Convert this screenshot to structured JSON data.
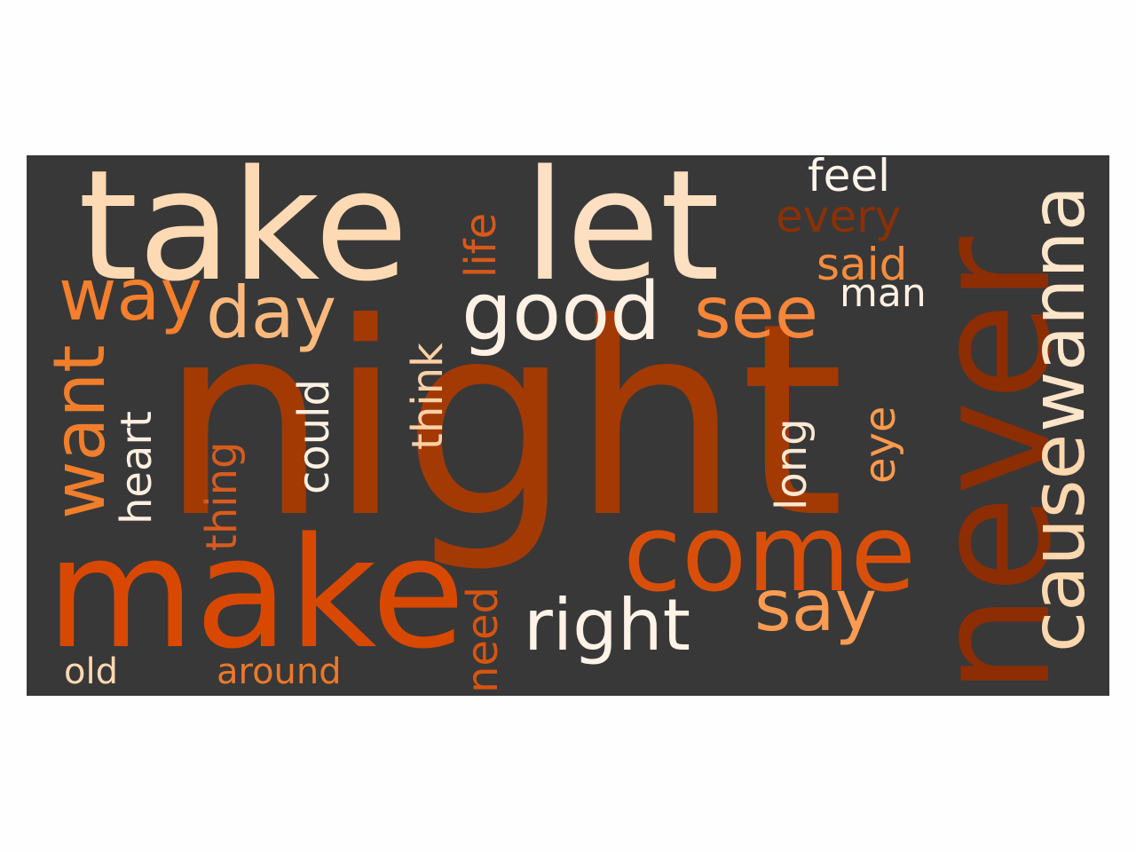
{
  "background_color": "#383838",
  "words": [
    {
      "text": "night",
      "color": "#a33a03"
    },
    {
      "text": "never",
      "color": "#8c2d04"
    },
    {
      "text": "take",
      "color": "#fddab4"
    },
    {
      "text": "let",
      "color": "#fde0c1"
    },
    {
      "text": "make",
      "color": "#d94801"
    },
    {
      "text": "come",
      "color": "#d94f0a"
    },
    {
      "text": "wanna",
      "color": "#fde5ca"
    },
    {
      "text": "cause",
      "color": "#fdd7ae"
    },
    {
      "text": "good",
      "color": "#fff1e4"
    },
    {
      "text": "right",
      "color": "#fff3e7"
    },
    {
      "text": "want",
      "color": "#f17e2b"
    },
    {
      "text": "day",
      "color": "#fdb97c"
    },
    {
      "text": "see",
      "color": "#f5863a"
    },
    {
      "text": "way",
      "color": "#f57f2c"
    },
    {
      "text": "say",
      "color": "#fd9b52"
    },
    {
      "text": "heart",
      "color": "#ffefe2"
    },
    {
      "text": "could",
      "color": "#fef0e2"
    },
    {
      "text": "think",
      "color": "#fdd1a5"
    },
    {
      "text": "thing",
      "color": "#d85b1e"
    },
    {
      "text": "life",
      "color": "#d7591a"
    },
    {
      "text": "feel",
      "color": "#fff4ea"
    },
    {
      "text": "every",
      "color": "#8a3105"
    },
    {
      "text": "said",
      "color": "#f38c3f"
    },
    {
      "text": "man",
      "color": "#fef0e2"
    },
    {
      "text": "long",
      "color": "#fde8d2"
    },
    {
      "text": "eye",
      "color": "#fd9a4e"
    },
    {
      "text": "need",
      "color": "#d65510"
    },
    {
      "text": "old",
      "color": "#fdd9b2"
    },
    {
      "text": "around",
      "color": "#e9792b"
    }
  ]
}
